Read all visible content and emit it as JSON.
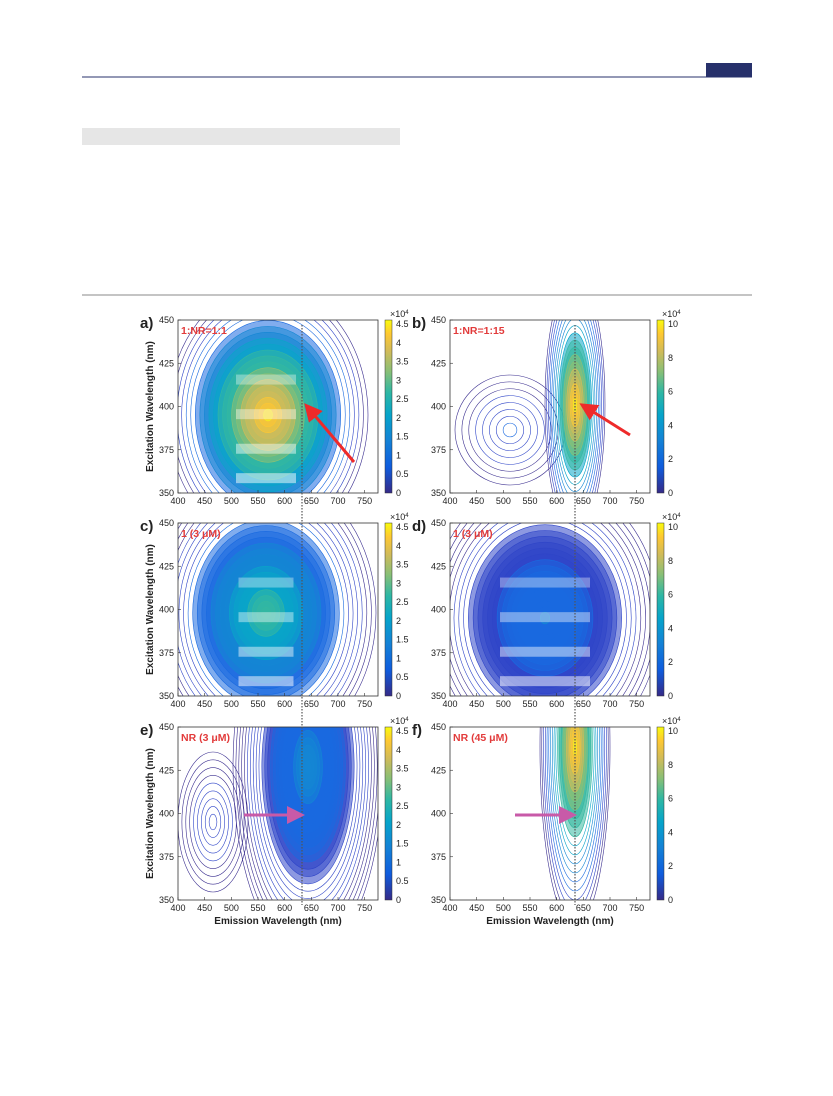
{
  "figure": {
    "panels": [
      {
        "letter": "a)",
        "label": "1:NR=1:1"
      },
      {
        "letter": "b)",
        "label": "1:NR=1:15"
      },
      {
        "letter": "c)",
        "label": "1 (3 μM)"
      },
      {
        "letter": "d)",
        "label": "1 (3 μM)"
      },
      {
        "letter": "e)",
        "label": "NR (3 μM)"
      },
      {
        "letter": "f)",
        "label": "NR (45 μM)"
      }
    ],
    "x_ticks": [
      "400",
      "450",
      "500",
      "550",
      "600",
      "650",
      "700",
      "750"
    ],
    "y_ticks": [
      "450",
      "425",
      "400",
      "375",
      "350"
    ],
    "colorbar_ticks_left": [
      "4.5",
      "4",
      "3.5",
      "3",
      "2.5",
      "2",
      "1.5",
      "1",
      "0.5",
      "0"
    ],
    "colorbar_ticks_right": [
      "10",
      "8",
      "6",
      "4",
      "2",
      "0"
    ],
    "colorbar_base": "×10",
    "colorbar_power": "4",
    "x_label": "Emission Wavelength (nm)",
    "y_label": "Excitation Wavelength (nm)"
  }
}
